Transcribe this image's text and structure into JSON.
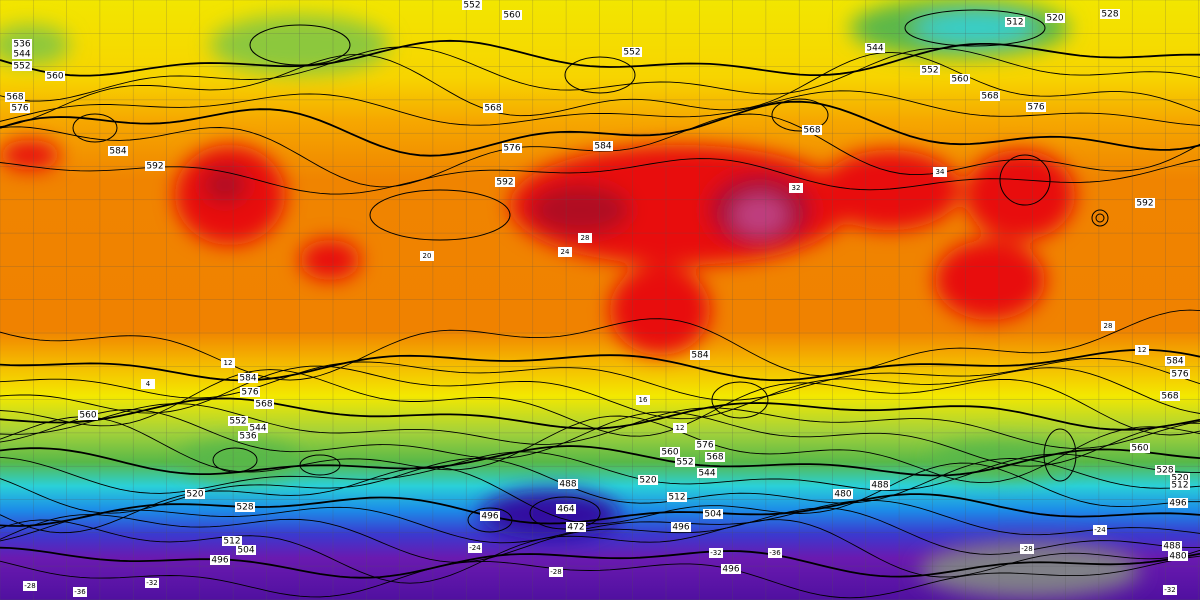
{
  "map": {
    "height_labels": [
      "552",
      "560",
      "512",
      "520",
      "528",
      "536",
      "544",
      "552",
      "560",
      "568",
      "576",
      "552",
      "568",
      "584",
      "592",
      "592",
      "576",
      "584",
      "568",
      "560",
      "568",
      "576",
      "552",
      "544",
      "584",
      "576",
      "592",
      "584",
      "584",
      "576",
      "568",
      "560",
      "552",
      "544",
      "536",
      "576",
      "568",
      "560",
      "552",
      "544",
      "520",
      "512",
      "504",
      "496",
      "480",
      "488",
      "488",
      "496",
      "464",
      "472",
      "528",
      "520",
      "512",
      "504",
      "496",
      "496",
      "560",
      "528",
      "520",
      "512",
      "496",
      "488",
      "480",
      "568"
    ],
    "temperature_labels": [
      "20",
      "28",
      "28",
      "12",
      "16",
      "12",
      "4",
      "12",
      "-24",
      "-28",
      "-32",
      "-36",
      "-28",
      "-24",
      "-32",
      "-36",
      "-28",
      "-32",
      "24",
      "32",
      "34"
    ]
  }
}
